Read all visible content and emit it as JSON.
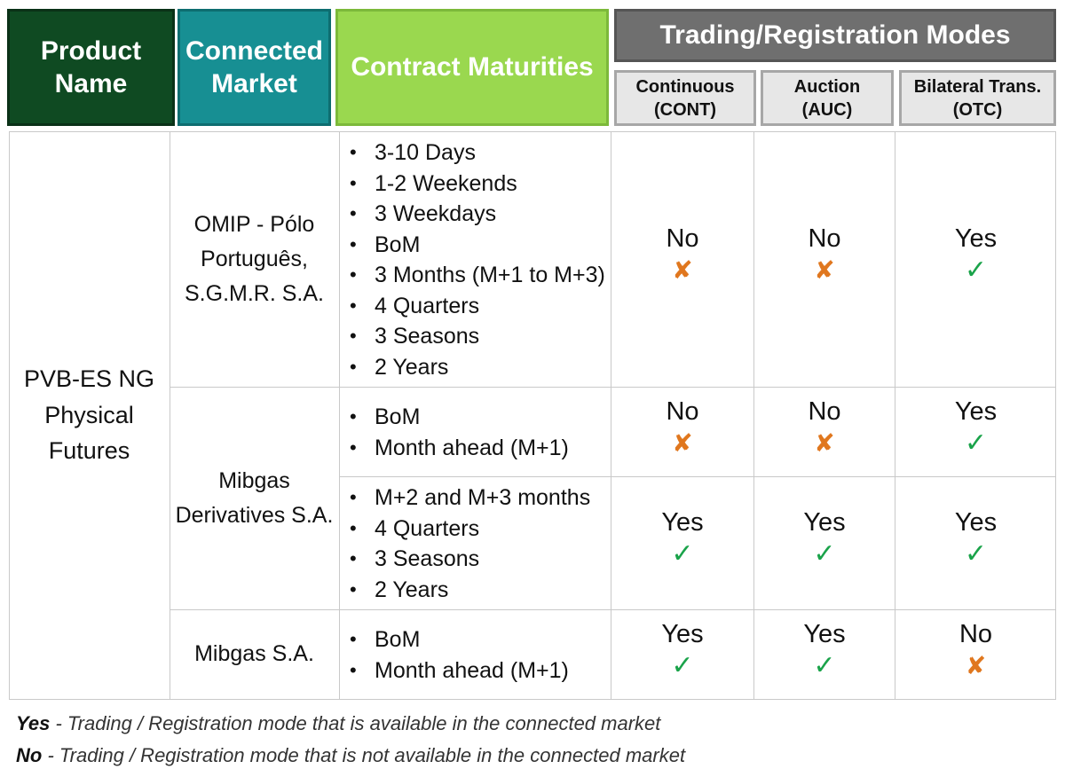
{
  "headers": {
    "product": "Product\nName",
    "market": "Connected\nMarket",
    "maturities": "Contract Maturities",
    "modes": "Trading/Registration Modes",
    "continuous": "Continuous\n(CONT)",
    "auction": "Auction\n(AUC)",
    "bilateral": "Bilateral Trans.\n(OTC)"
  },
  "product_name": "PVB-ES NG\nPhysical\nFutures",
  "markets": {
    "omip": "OMIP - Pólo\nPortuguês,\nS.G.M.R. S.A.",
    "mibgas_derivatives": "Mibgas\nDerivatives S.A.",
    "mibgas": "Mibgas S.A."
  },
  "rows": [
    {
      "maturities": [
        "3-10 Days",
        "1-2 Weekends",
        "3 Weekdays",
        "BoM",
        "3 Months (M+1 to M+3)",
        "4 Quarters",
        "3 Seasons",
        "2 Years"
      ],
      "cont": "No",
      "auc": "No",
      "otc": "Yes"
    },
    {
      "maturities": [
        "BoM",
        "Month ahead (M+1)"
      ],
      "cont": "No",
      "auc": "No",
      "otc": "Yes"
    },
    {
      "maturities": [
        "M+2 and M+3 months",
        "4 Quarters",
        "3 Seasons",
        "2 Years"
      ],
      "cont": "Yes",
      "auc": "Yes",
      "otc": "Yes"
    },
    {
      "maturities": [
        "BoM",
        "Month ahead (M+1)"
      ],
      "cont": "Yes",
      "auc": "Yes",
      "otc": "No"
    }
  ],
  "legend": {
    "yes_term": "Yes",
    "yes_text": " - Trading / Registration mode that is available in the connected market",
    "no_term": "No",
    "no_text": " - Trading / Registration mode that is not available in the connected market"
  },
  "icons": {
    "yes": "check-icon",
    "no": "cross-icon"
  },
  "colors": {
    "yes": "#1aa34a",
    "no": "#e0771e",
    "product_header": "#0f4a22",
    "market_header": "#178f93",
    "maturities_header": "#9ad84f",
    "modes_header": "#6f6f6f"
  }
}
